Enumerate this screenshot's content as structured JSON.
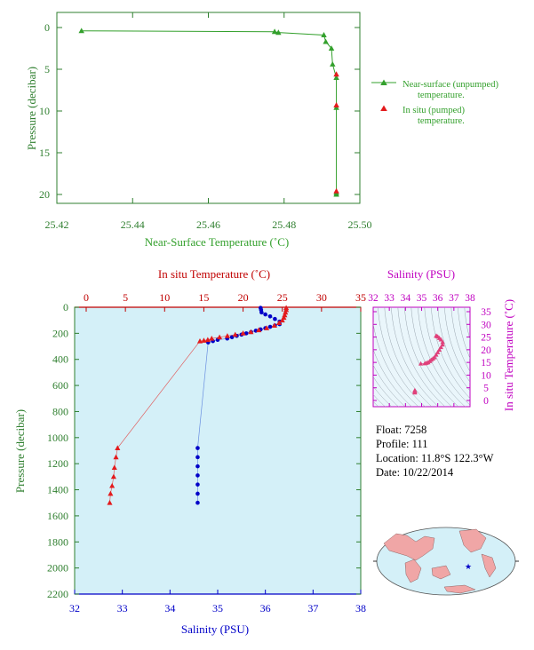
{
  "float_info": {
    "float_line": "Float: 7258",
    "profile_line": "Profile: 111",
    "location_line": "Location: 11.8°S 122.3°W",
    "date_line": "Date: 10/22/2014"
  },
  "footer": {
    "credit": ""
  },
  "colors": {
    "green": "#33a02c",
    "red": "#e31a1c",
    "dark_red": "#c00000",
    "blue": "#0000c8",
    "magenta": "#c000c0",
    "axis_green": "#2f7f2f",
    "ocean": "#d4f0f8",
    "land": "#f0a6a6",
    "inset_bg": "#eaf6fb"
  },
  "chart_data": [
    {
      "type": "line",
      "xlabel": "Near-Surface Temperature (˚C)",
      "ylabel": "Pressure (decibar)",
      "xlim": [
        25.42,
        25.5
      ],
      "ylim": [
        0,
        22
      ],
      "y_inverted": true,
      "xticks": [
        "25.42",
        "25.44",
        "25.46",
        "25.48",
        "25.50"
      ],
      "yticks": [
        "0",
        "5",
        "10",
        "15",
        "20"
      ],
      "legend": {
        "placement": "right",
        "entries": [
          "Near-surface (unpumped) temperature.",
          "In situ (pumped) temperature."
        ]
      },
      "series": [
        {
          "name": "Near-surface (unpumped) temperature.",
          "marker": "triangle",
          "points": [
            [
              25.4265,
              0.4
            ],
            [
              25.4775,
              0.5
            ],
            [
              25.4785,
              0.6
            ],
            [
              25.4905,
              0.9
            ],
            [
              25.491,
              1.7
            ],
            [
              25.4925,
              2.5
            ],
            [
              25.4928,
              4.4
            ],
            [
              25.4938,
              6.0
            ],
            [
              25.4938,
              9.6
            ],
            [
              25.4938,
              19.8
            ],
            [
              25.4938,
              20.0
            ]
          ]
        },
        {
          "name": "In situ (pumped) temperature.",
          "marker": "triangle",
          "points": [
            [
              25.4938,
              5.6
            ],
            [
              25.4938,
              9.3
            ],
            [
              25.4938,
              19.6
            ]
          ]
        }
      ]
    },
    {
      "type": "line",
      "ylabel": "Pressure (decibar)",
      "x_top_label": "In situ Temperature (˚C)",
      "x_bottom_label": "Salinity (PSU)",
      "temperature_xlim": [
        0,
        35
      ],
      "salinity_xlim": [
        32,
        38
      ],
      "ylim": [
        0,
        2200
      ],
      "y_inverted": true,
      "temperature_ticks": [
        "0",
        "5",
        "10",
        "15",
        "20",
        "25",
        "30",
        "35"
      ],
      "salinity_ticks": [
        "32",
        "33",
        "34",
        "35",
        "36",
        "37",
        "38"
      ],
      "yticks": [
        "0",
        "200",
        "400",
        "600",
        "800",
        "1000",
        "1200",
        "1400",
        "1600",
        "1800",
        "2000",
        "2200"
      ],
      "series": [
        {
          "name": "",
          "variable": "temperature",
          "marker": "triangle",
          "points": [
            [
              25.5,
              5
            ],
            [
              25.5,
              20
            ],
            [
              25.4,
              40
            ],
            [
              25.3,
              60
            ],
            [
              25.2,
              80
            ],
            [
              25.0,
              100
            ],
            [
              24.6,
              120
            ],
            [
              24.0,
              140
            ],
            [
              23.0,
              160
            ],
            [
              22.0,
              175
            ],
            [
              21.0,
              190
            ],
            [
              20.0,
              200
            ],
            [
              19.0,
              210
            ],
            [
              18.0,
              220
            ],
            [
              17.0,
              230
            ],
            [
              16.0,
              240
            ],
            [
              15.5,
              250
            ],
            [
              15.0,
              255
            ],
            [
              14.5,
              260
            ],
            [
              4.0,
              1080
            ],
            [
              3.8,
              1150
            ],
            [
              3.6,
              1230
            ],
            [
              3.5,
              1300
            ],
            [
              3.3,
              1370
            ],
            [
              3.1,
              1430
            ],
            [
              3.0,
              1500
            ]
          ]
        },
        {
          "name": "",
          "variable": "salinity",
          "marker": "circle",
          "points": [
            [
              35.9,
              5
            ],
            [
              35.91,
              20
            ],
            [
              35.92,
              40
            ],
            [
              36.0,
              55
            ],
            [
              36.1,
              70
            ],
            [
              36.2,
              90
            ],
            [
              36.3,
              110
            ],
            [
              36.3,
              130
            ],
            [
              36.2,
              140
            ],
            [
              36.1,
              150
            ],
            [
              36.0,
              160
            ],
            [
              35.9,
              170
            ],
            [
              35.8,
              180
            ],
            [
              35.7,
              190
            ],
            [
              35.6,
              200
            ],
            [
              35.5,
              210
            ],
            [
              35.4,
              220
            ],
            [
              35.3,
              230
            ],
            [
              35.2,
              240
            ],
            [
              35.0,
              250
            ],
            [
              34.9,
              260
            ],
            [
              34.8,
              270
            ],
            [
              34.58,
              1080
            ],
            [
              34.58,
              1150
            ],
            [
              34.58,
              1220
            ],
            [
              34.58,
              1290
            ],
            [
              34.58,
              1360
            ],
            [
              34.58,
              1430
            ],
            [
              34.58,
              1500
            ]
          ]
        }
      ]
    },
    {
      "type": "scatter",
      "xlabel": "Salinity (PSU)",
      "ylabel": "In situ Temperature (˚C)",
      "xlim": [
        32,
        38
      ],
      "ylim": [
        0,
        35
      ],
      "xticks": [
        "32",
        "33",
        "34",
        "35",
        "36",
        "37",
        "38"
      ],
      "yticks": [
        "0",
        "5",
        "10",
        "15",
        "20",
        "25",
        "30",
        "35"
      ],
      "series": [
        {
          "name": "",
          "marker": "triangle",
          "points": [
            [
              35.9,
              25.5
            ],
            [
              35.92,
              25.4
            ],
            [
              36.0,
              25.2
            ],
            [
              36.1,
              24.6
            ],
            [
              36.2,
              24.0
            ],
            [
              36.3,
              23.0
            ],
            [
              36.3,
              22.0
            ],
            [
              36.2,
              21.0
            ],
            [
              36.1,
              20.0
            ],
            [
              36.0,
              19.0
            ],
            [
              35.9,
              18.0
            ],
            [
              35.8,
              17.0
            ],
            [
              35.7,
              16.5
            ],
            [
              35.6,
              16.0
            ],
            [
              35.5,
              15.5
            ],
            [
              35.4,
              15.0
            ],
            [
              35.3,
              14.8
            ],
            [
              35.2,
              14.6
            ],
            [
              34.95,
              14.5
            ],
            [
              34.58,
              4.0
            ],
            [
              34.58,
              3.7
            ],
            [
              34.58,
              3.4
            ],
            [
              34.58,
              3.1
            ]
          ]
        }
      ]
    }
  ]
}
